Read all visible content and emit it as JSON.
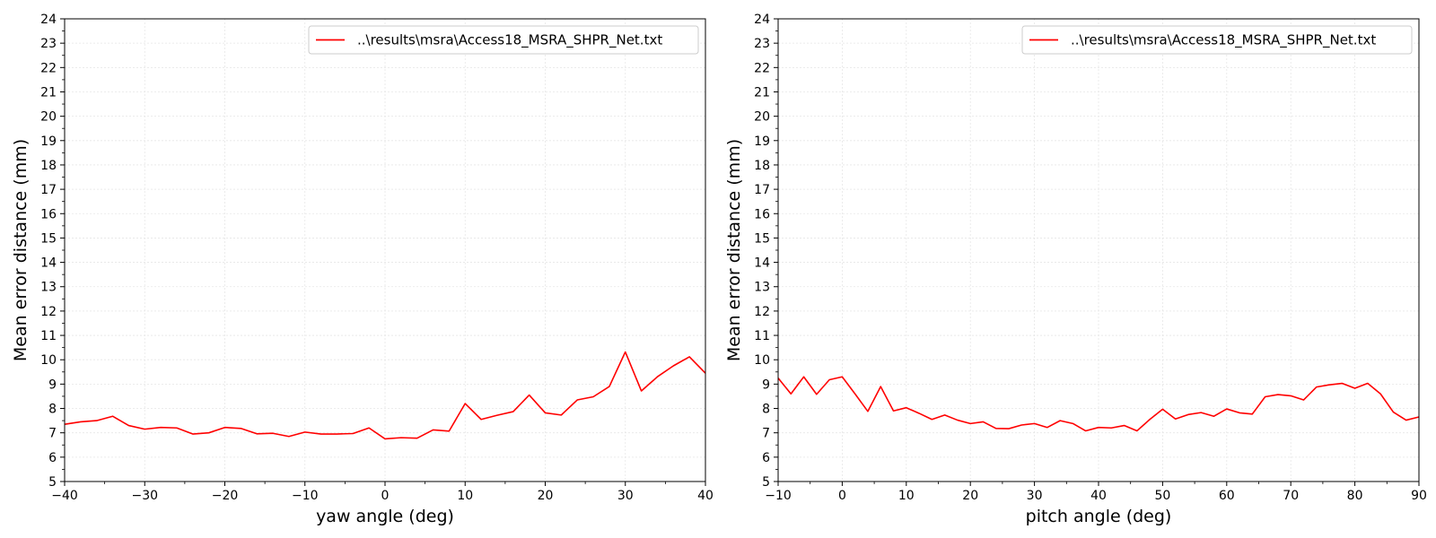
{
  "chart_data": [
    {
      "type": "line",
      "xlabel": "yaw angle (deg)",
      "ylabel": "Mean error distance (mm)",
      "xlim": [
        -40,
        40
      ],
      "ylim": [
        5,
        24
      ],
      "xticks": [
        -40,
        -30,
        -20,
        -10,
        0,
        10,
        20,
        30,
        40
      ],
      "xtick_labels": [
        "−40",
        "−30",
        "−20",
        "−10",
        "0",
        "10",
        "20",
        "30",
        "40"
      ],
      "yticks": [
        5,
        6,
        7,
        8,
        9,
        10,
        11,
        12,
        13,
        14,
        15,
        16,
        17,
        18,
        19,
        20,
        21,
        22,
        23,
        24
      ],
      "grid": true,
      "legend_position": "top-right",
      "series": [
        {
          "name": "..\\results\\msra\\Access18_MSRA_SHPR_Net.txt",
          "color": "#ff0000",
          "x": [
            -40,
            -38,
            -36,
            -34,
            -32,
            -30,
            -28,
            -26,
            -24,
            -22,
            -20,
            -18,
            -16,
            -14,
            -12,
            -10,
            -8,
            -6,
            -4,
            -2,
            0,
            2,
            4,
            6,
            8,
            10,
            12,
            14,
            16,
            18,
            20,
            22,
            24,
            26,
            28,
            30,
            32,
            34,
            36,
            38,
            40
          ],
          "y": [
            7.35,
            7.45,
            7.5,
            7.68,
            7.3,
            7.15,
            7.22,
            7.2,
            6.95,
            7.0,
            7.22,
            7.18,
            6.96,
            6.98,
            6.85,
            7.03,
            6.95,
            6.95,
            6.97,
            7.2,
            6.75,
            6.8,
            6.78,
            7.12,
            7.07,
            8.2,
            7.55,
            7.72,
            7.87,
            8.55,
            7.82,
            7.73,
            8.35,
            8.48,
            8.9,
            10.32,
            8.72,
            9.3,
            9.75,
            10.12,
            9.45
          ]
        }
      ]
    },
    {
      "type": "line",
      "xlabel": "pitch angle (deg)",
      "ylabel": "Mean error distance (mm)",
      "xlim": [
        -10,
        90
      ],
      "ylim": [
        5,
        24
      ],
      "xticks": [
        -10,
        0,
        10,
        20,
        30,
        40,
        50,
        60,
        70,
        80,
        90
      ],
      "xtick_labels": [
        "−10",
        "0",
        "10",
        "20",
        "30",
        "40",
        "50",
        "60",
        "70",
        "80",
        "90"
      ],
      "yticks": [
        5,
        6,
        7,
        8,
        9,
        10,
        11,
        12,
        13,
        14,
        15,
        16,
        17,
        18,
        19,
        20,
        21,
        22,
        23,
        24
      ],
      "grid": true,
      "legend_position": "top-right",
      "series": [
        {
          "name": "..\\results\\msra\\Access18_MSRA_SHPR_Net.txt",
          "color": "#ff0000",
          "x": [
            -10,
            -8,
            -6,
            -4,
            -2,
            0,
            2,
            4,
            6,
            8,
            10,
            12,
            14,
            16,
            18,
            20,
            22,
            24,
            26,
            28,
            30,
            32,
            34,
            36,
            38,
            40,
            42,
            44,
            46,
            48,
            50,
            52,
            54,
            56,
            58,
            60,
            62,
            64,
            66,
            68,
            70,
            72,
            74,
            76,
            78,
            80,
            82,
            84,
            86,
            88,
            90
          ],
          "y": [
            9.25,
            8.6,
            9.3,
            8.58,
            9.18,
            9.3,
            8.6,
            7.88,
            8.9,
            7.9,
            8.03,
            7.8,
            7.55,
            7.73,
            7.52,
            7.38,
            7.45,
            7.18,
            7.17,
            7.32,
            7.38,
            7.22,
            7.5,
            7.38,
            7.08,
            7.22,
            7.2,
            7.3,
            7.08,
            7.55,
            7.97,
            7.57,
            7.75,
            7.83,
            7.68,
            7.98,
            7.82,
            7.77,
            8.48,
            8.57,
            8.52,
            8.35,
            8.88,
            8.97,
            9.03,
            8.83,
            9.03,
            8.6,
            7.85,
            7.52,
            7.65
          ]
        }
      ]
    }
  ]
}
